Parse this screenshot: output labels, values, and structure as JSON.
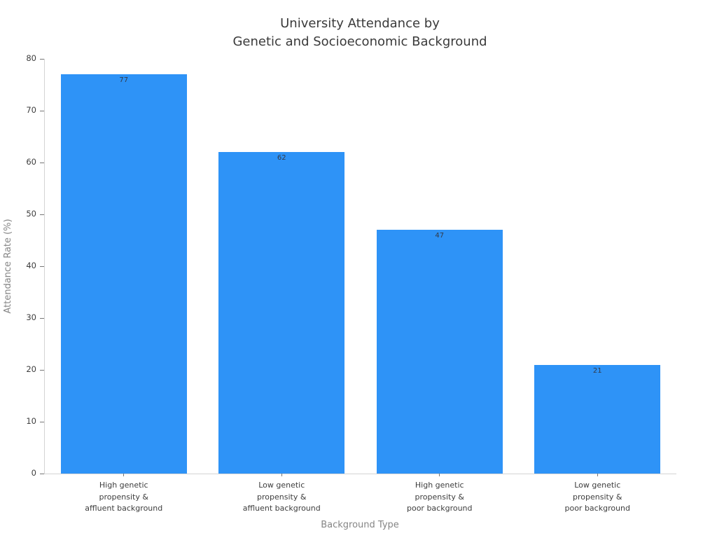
{
  "chart_data": {
    "type": "bar",
    "title": "University Attendance by\nGenetic and Socioeconomic Background",
    "xlabel": "Background Type",
    "ylabel": "Attendance Rate (%)",
    "categories": [
      "High genetic\npropensity &\naffluent background",
      "Low genetic\npropensity &\naffluent background",
      "High genetic\npropensity &\npoor background",
      "Low genetic\npropensity &\npoor background"
    ],
    "values": [
      77,
      62,
      47,
      21
    ],
    "value_labels": [
      "77",
      "62",
      "47",
      "21"
    ],
    "ylim": [
      0,
      80
    ],
    "yticks": [
      0,
      10,
      20,
      30,
      40,
      50,
      60,
      70,
      80
    ],
    "grid": false,
    "legend": "none",
    "colors": {
      "bar": "#2e93f7",
      "title_text": "#3a3a3a",
      "tick_text": "#3d3d3d",
      "axis_title_text": "#858585",
      "axis_line": "#d4d4d4",
      "value_label_text": "#333a47",
      "background": "#ffffff"
    }
  }
}
